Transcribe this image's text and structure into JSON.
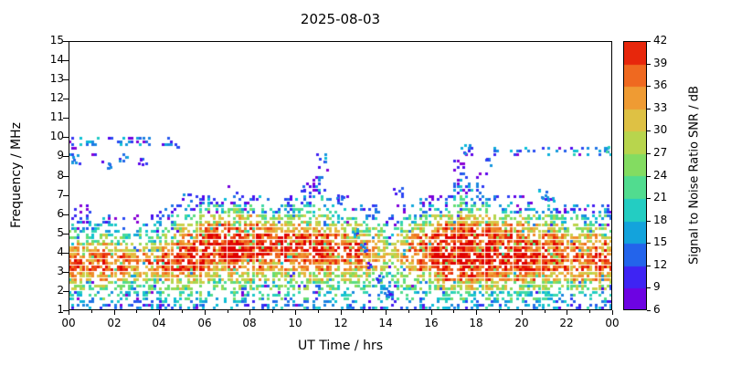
{
  "chart_data": {
    "type": "heatmap",
    "title": "2025-08-03",
    "xlabel": "UT Time / hrs",
    "ylabel": "Frequency / MHz",
    "xlim": [
      0,
      24
    ],
    "ylim": [
      1,
      15
    ],
    "xtick_hours": [
      0,
      2,
      4,
      6,
      8,
      10,
      12,
      14,
      16,
      18,
      20,
      22,
      24
    ],
    "xtick_labels": [
      "00",
      "02",
      "04",
      "06",
      "08",
      "10",
      "12",
      "14",
      "16",
      "18",
      "20",
      "22",
      "00"
    ],
    "ytick_values": [
      1,
      2,
      3,
      4,
      5,
      6,
      7,
      8,
      9,
      10,
      11,
      12,
      13,
      14,
      15
    ],
    "colorbar": {
      "label": "Signal to Noise Ratio SNR / dB",
      "min": 6,
      "max": 42,
      "ticks": [
        6,
        9,
        12,
        15,
        18,
        21,
        24,
        27,
        30,
        33,
        36,
        39,
        42
      ],
      "stops": [
        [
          6,
          "#8a00d4"
        ],
        [
          9,
          "#5005f0"
        ],
        [
          12,
          "#2b42f5"
        ],
        [
          15,
          "#1b86e0"
        ],
        [
          18,
          "#0ac0d8"
        ],
        [
          21,
          "#3cd9ac"
        ],
        [
          24,
          "#65de72"
        ],
        [
          27,
          "#a0da50"
        ],
        [
          30,
          "#cfd04a"
        ],
        [
          33,
          "#edb13e"
        ],
        [
          36,
          "#f08428"
        ],
        [
          39,
          "#ee4d17"
        ],
        [
          42,
          "#e00000"
        ]
      ]
    },
    "grid": {
      "t_start": 0.0,
      "t_step": 0.5,
      "f_start": 1.0,
      "f_step": 0.5,
      "units": "dB",
      "values": [
        [
          16,
          21,
          27,
          35,
          39,
          38,
          33,
          27,
          21,
          15,
          11,
          0,
          0,
          0,
          0,
          0,
          12,
          18
        ],
        [
          16,
          20,
          26,
          34,
          39,
          38,
          33,
          26,
          20,
          14,
          10,
          0,
          0,
          0,
          0,
          0,
          0,
          17
        ],
        [
          15,
          20,
          26,
          34,
          38,
          37,
          32,
          25,
          19,
          13,
          0,
          0,
          0,
          0,
          0,
          0,
          11,
          16
        ],
        [
          15,
          20,
          25,
          33,
          38,
          37,
          32,
          24,
          18,
          12,
          0,
          0,
          0,
          0,
          0,
          0,
          0,
          15
        ],
        [
          15,
          19,
          25,
          33,
          37,
          36,
          31,
          23,
          17,
          11,
          0,
          0,
          0,
          0,
          0,
          0,
          0,
          15
        ],
        [
          15,
          19,
          24,
          32,
          37,
          36,
          30,
          22,
          16,
          10,
          0,
          0,
          0,
          0,
          0,
          0,
          0,
          14
        ],
        [
          15,
          19,
          24,
          31,
          36,
          35,
          29,
          22,
          16,
          10,
          0,
          0,
          0,
          0,
          0,
          0,
          0,
          13
        ],
        [
          15,
          19,
          24,
          31,
          36,
          35,
          30,
          23,
          17,
          11,
          0,
          0,
          0,
          0,
          0,
          0,
          0,
          13
        ],
        [
          15,
          20,
          25,
          33,
          38,
          37,
          33,
          27,
          21,
          14,
          10,
          0,
          0,
          0,
          0,
          0,
          0,
          12
        ],
        [
          16,
          20,
          26,
          34,
          39,
          39,
          36,
          31,
          25,
          18,
          12,
          0,
          0,
          0,
          0,
          0,
          0,
          0
        ],
        [
          16,
          21,
          26,
          33,
          39,
          40,
          39,
          35,
          29,
          22,
          15,
          10,
          0,
          0,
          0,
          0,
          0,
          0
        ],
        [
          16,
          21,
          25,
          31,
          37,
          40,
          41,
          38,
          32,
          25,
          17,
          11,
          0,
          0,
          0,
          0,
          0,
          0
        ],
        [
          16,
          20,
          24,
          29,
          35,
          40,
          42,
          41,
          37,
          30,
          21,
          13,
          0,
          0,
          0,
          0,
          0,
          0
        ],
        [
          16,
          20,
          24,
          29,
          35,
          40,
          42,
          41,
          38,
          31,
          22,
          13,
          0,
          0,
          0,
          0,
          0,
          0
        ],
        [
          16,
          20,
          24,
          30,
          36,
          41,
          42,
          41,
          38,
          31,
          22,
          14,
          10,
          0,
          0,
          0,
          0,
          0
        ],
        [
          16,
          20,
          24,
          30,
          36,
          40,
          42,
          41,
          37,
          30,
          21,
          13,
          0,
          0,
          0,
          0,
          0,
          0
        ],
        [
          16,
          20,
          24,
          29,
          35,
          40,
          41,
          40,
          36,
          29,
          20,
          12,
          0,
          0,
          0,
          0,
          0,
          0
        ],
        [
          16,
          20,
          24,
          29,
          34,
          39,
          41,
          40,
          36,
          28,
          19,
          12,
          0,
          0,
          0,
          0,
          0,
          0
        ],
        [
          16,
          20,
          24,
          28,
          34,
          39,
          41,
          39,
          34,
          27,
          18,
          11,
          0,
          0,
          0,
          0,
          0,
          0
        ],
        [
          15,
          20,
          24,
          28,
          33,
          38,
          40,
          39,
          34,
          26,
          18,
          11,
          0,
          0,
          0,
          0,
          0,
          0
        ],
        [
          15,
          20,
          24,
          28,
          33,
          38,
          40,
          38,
          33,
          26,
          18,
          11,
          0,
          0,
          0,
          0,
          0,
          0
        ],
        [
          15,
          20,
          24,
          29,
          34,
          38,
          40,
          38,
          33,
          27,
          20,
          14,
          11,
          9,
          0,
          0,
          0,
          0
        ],
        [
          16,
          20,
          25,
          30,
          35,
          39,
          40,
          38,
          33,
          27,
          21,
          16,
          12,
          10,
          8,
          0,
          0,
          0
        ],
        [
          15,
          19,
          24,
          29,
          34,
          38,
          39,
          36,
          31,
          24,
          16,
          10,
          0,
          0,
          0,
          0,
          0,
          0
        ],
        [
          15,
          19,
          23,
          28,
          34,
          38,
          38,
          35,
          29,
          22,
          14,
          9,
          0,
          0,
          0,
          0,
          0,
          0
        ],
        [
          15,
          19,
          23,
          28,
          33,
          37,
          38,
          34,
          28,
          21,
          13,
          0,
          0,
          0,
          0,
          0,
          0,
          0
        ],
        [
          14,
          18,
          22,
          27,
          32,
          35,
          35,
          31,
          25,
          18,
          11,
          0,
          0,
          0,
          0,
          0,
          0,
          0
        ],
        [
          14,
          17,
          21,
          25,
          30,
          33,
          33,
          29,
          23,
          16,
          10,
          0,
          0,
          0,
          0,
          0,
          0,
          0
        ],
        [
          12,
          15,
          18,
          22,
          26,
          28,
          27,
          23,
          17,
          11,
          0,
          0,
          0,
          0,
          0,
          0,
          0,
          0
        ],
        [
          14,
          17,
          21,
          26,
          31,
          34,
          33,
          29,
          23,
          16,
          10,
          0,
          0,
          0,
          0,
          0,
          0,
          0
        ],
        [
          15,
          19,
          23,
          28,
          34,
          37,
          37,
          34,
          28,
          20,
          13,
          0,
          0,
          0,
          0,
          0,
          0,
          0
        ],
        [
          15,
          19,
          24,
          30,
          36,
          39,
          39,
          36,
          30,
          23,
          15,
          10,
          0,
          0,
          0,
          0,
          0,
          0
        ],
        [
          16,
          20,
          26,
          33,
          39,
          41,
          41,
          39,
          34,
          27,
          18,
          11,
          0,
          0,
          0,
          0,
          0,
          0
        ],
        [
          16,
          21,
          28,
          36,
          41,
          42,
          42,
          40,
          36,
          29,
          20,
          12,
          0,
          0,
          0,
          0,
          0,
          0
        ],
        [
          16,
          22,
          30,
          38,
          42,
          42,
          42,
          41,
          38,
          32,
          25,
          19,
          15,
          12,
          10,
          9,
          0,
          0
        ],
        [
          16,
          22,
          30,
          38,
          42,
          42,
          42,
          41,
          38,
          31,
          23,
          17,
          13,
          10,
          0,
          0,
          11,
          0
        ],
        [
          16,
          22,
          30,
          38,
          42,
          42,
          41,
          40,
          37,
          31,
          24,
          18,
          14,
          11,
          9,
          0,
          0,
          0
        ],
        [
          16,
          21,
          29,
          37,
          41,
          42,
          41,
          40,
          36,
          29,
          21,
          14,
          0,
          0,
          0,
          0,
          12,
          0
        ],
        [
          16,
          21,
          28,
          35,
          40,
          41,
          40,
          39,
          34,
          27,
          19,
          12,
          0,
          0,
          0,
          0,
          0,
          0
        ],
        [
          16,
          21,
          27,
          34,
          39,
          41,
          40,
          38,
          33,
          26,
          18,
          11,
          0,
          0,
          0,
          0,
          12,
          0
        ],
        [
          16,
          20,
          27,
          34,
          39,
          40,
          39,
          37,
          32,
          25,
          17,
          11,
          0,
          0,
          0,
          0,
          13,
          0
        ],
        [
          15,
          20,
          26,
          33,
          38,
          40,
          39,
          36,
          31,
          24,
          16,
          10,
          0,
          0,
          0,
          0,
          12,
          0
        ],
        [
          15,
          20,
          26,
          33,
          38,
          39,
          38,
          35,
          30,
          23,
          15,
          10,
          0,
          0,
          0,
          0,
          13,
          0
        ],
        [
          15,
          19,
          25,
          32,
          38,
          39,
          37,
          34,
          29,
          22,
          14,
          0,
          0,
          0,
          0,
          0,
          12,
          0
        ],
        [
          15,
          19,
          25,
          32,
          37,
          39,
          36,
          33,
          27,
          20,
          13,
          0,
          0,
          0,
          0,
          0,
          13,
          0
        ],
        [
          15,
          19,
          25,
          32,
          37,
          38,
          36,
          32,
          26,
          19,
          12,
          0,
          0,
          0,
          0,
          0,
          13,
          0
        ],
        [
          15,
          19,
          25,
          32,
          37,
          38,
          35,
          31,
          25,
          18,
          12,
          0,
          0,
          0,
          0,
          0,
          14,
          0
        ],
        [
          15,
          19,
          25,
          33,
          38,
          38,
          35,
          31,
          25,
          18,
          12,
          0,
          0,
          0,
          0,
          0,
          14,
          0
        ]
      ]
    },
    "extra_dots": [
      {
        "t": 0.3,
        "f": 8.9,
        "v": 13
      },
      {
        "t": 1.6,
        "f": 8.6,
        "v": 12
      },
      {
        "t": 2.4,
        "f": 9.0,
        "v": 13
      },
      {
        "t": 3.2,
        "f": 8.8,
        "v": 12
      },
      {
        "t": 4.6,
        "f": 9.6,
        "v": 14
      },
      {
        "t": 5.2,
        "f": 6.9,
        "v": 12
      },
      {
        "t": 10.4,
        "f": 7.4,
        "v": 13
      },
      {
        "t": 11.1,
        "f": 9.0,
        "v": 14
      },
      {
        "t": 12.0,
        "f": 6.8,
        "v": 12
      },
      {
        "t": 12.6,
        "f": 5.1,
        "v": 14
      },
      {
        "t": 12.9,
        "f": 4.3,
        "v": 13
      },
      {
        "t": 13.3,
        "f": 3.5,
        "v": 12
      },
      {
        "t": 13.7,
        "f": 2.7,
        "v": 13
      },
      {
        "t": 14.1,
        "f": 1.9,
        "v": 12
      },
      {
        "t": 14.5,
        "f": 7.2,
        "v": 12
      },
      {
        "t": 17.5,
        "f": 9.4,
        "v": 15
      },
      {
        "t": 18.6,
        "f": 8.8,
        "v": 12
      },
      {
        "t": 20.9,
        "f": 7.1,
        "v": 16
      },
      {
        "t": 21.2,
        "f": 6.9,
        "v": 14
      },
      {
        "t": 23.8,
        "f": 9.3,
        "v": 18
      }
    ]
  }
}
